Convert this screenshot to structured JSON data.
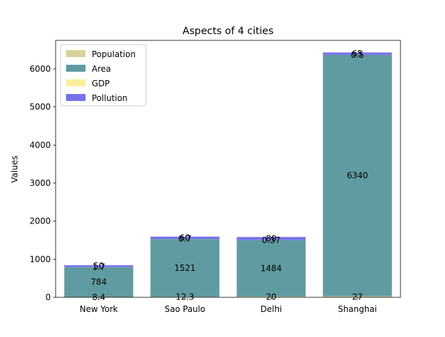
{
  "chart_data": {
    "type": "bar",
    "stacked": true,
    "title": "Aspects of 4 cities",
    "xlabel": "",
    "ylabel": "Values",
    "categories": [
      "New York",
      "Sao Paulo",
      "Delhi",
      "Shanghai"
    ],
    "ylim": [
      0,
      6750
    ],
    "yticks": [
      0,
      1000,
      2000,
      3000,
      4000,
      5000,
      6000
    ],
    "ytick_labels": [
      "0",
      "1000",
      "2000",
      "3000",
      "4000",
      "5000",
      "6000"
    ],
    "legend_position": "upper-left",
    "series": [
      {
        "name": "Population",
        "color": "#d8d39b",
        "values": [
          8.4,
          12.3,
          20,
          27
        ],
        "labels": [
          "8.4",
          "12.3",
          "20",
          "27"
        ]
      },
      {
        "name": "Area",
        "color": "#5f9ba0",
        "values": [
          784,
          1521,
          1484,
          6340
        ],
        "labels": [
          "784",
          "1521",
          "1484",
          "6340"
        ]
      },
      {
        "name": "GDP",
        "color": "#fbef9c",
        "values": [
          1.7,
          0.7,
          0.37,
          0.5
        ],
        "labels": [
          "1.7",
          "0.7",
          "0.37",
          "0.5"
        ]
      },
      {
        "name": "Pollution",
        "color": "#7671ea",
        "values": [
          50,
          60,
          80,
          65
        ],
        "labels": [
          "50",
          "60",
          "80",
          "65"
        ]
      }
    ]
  }
}
